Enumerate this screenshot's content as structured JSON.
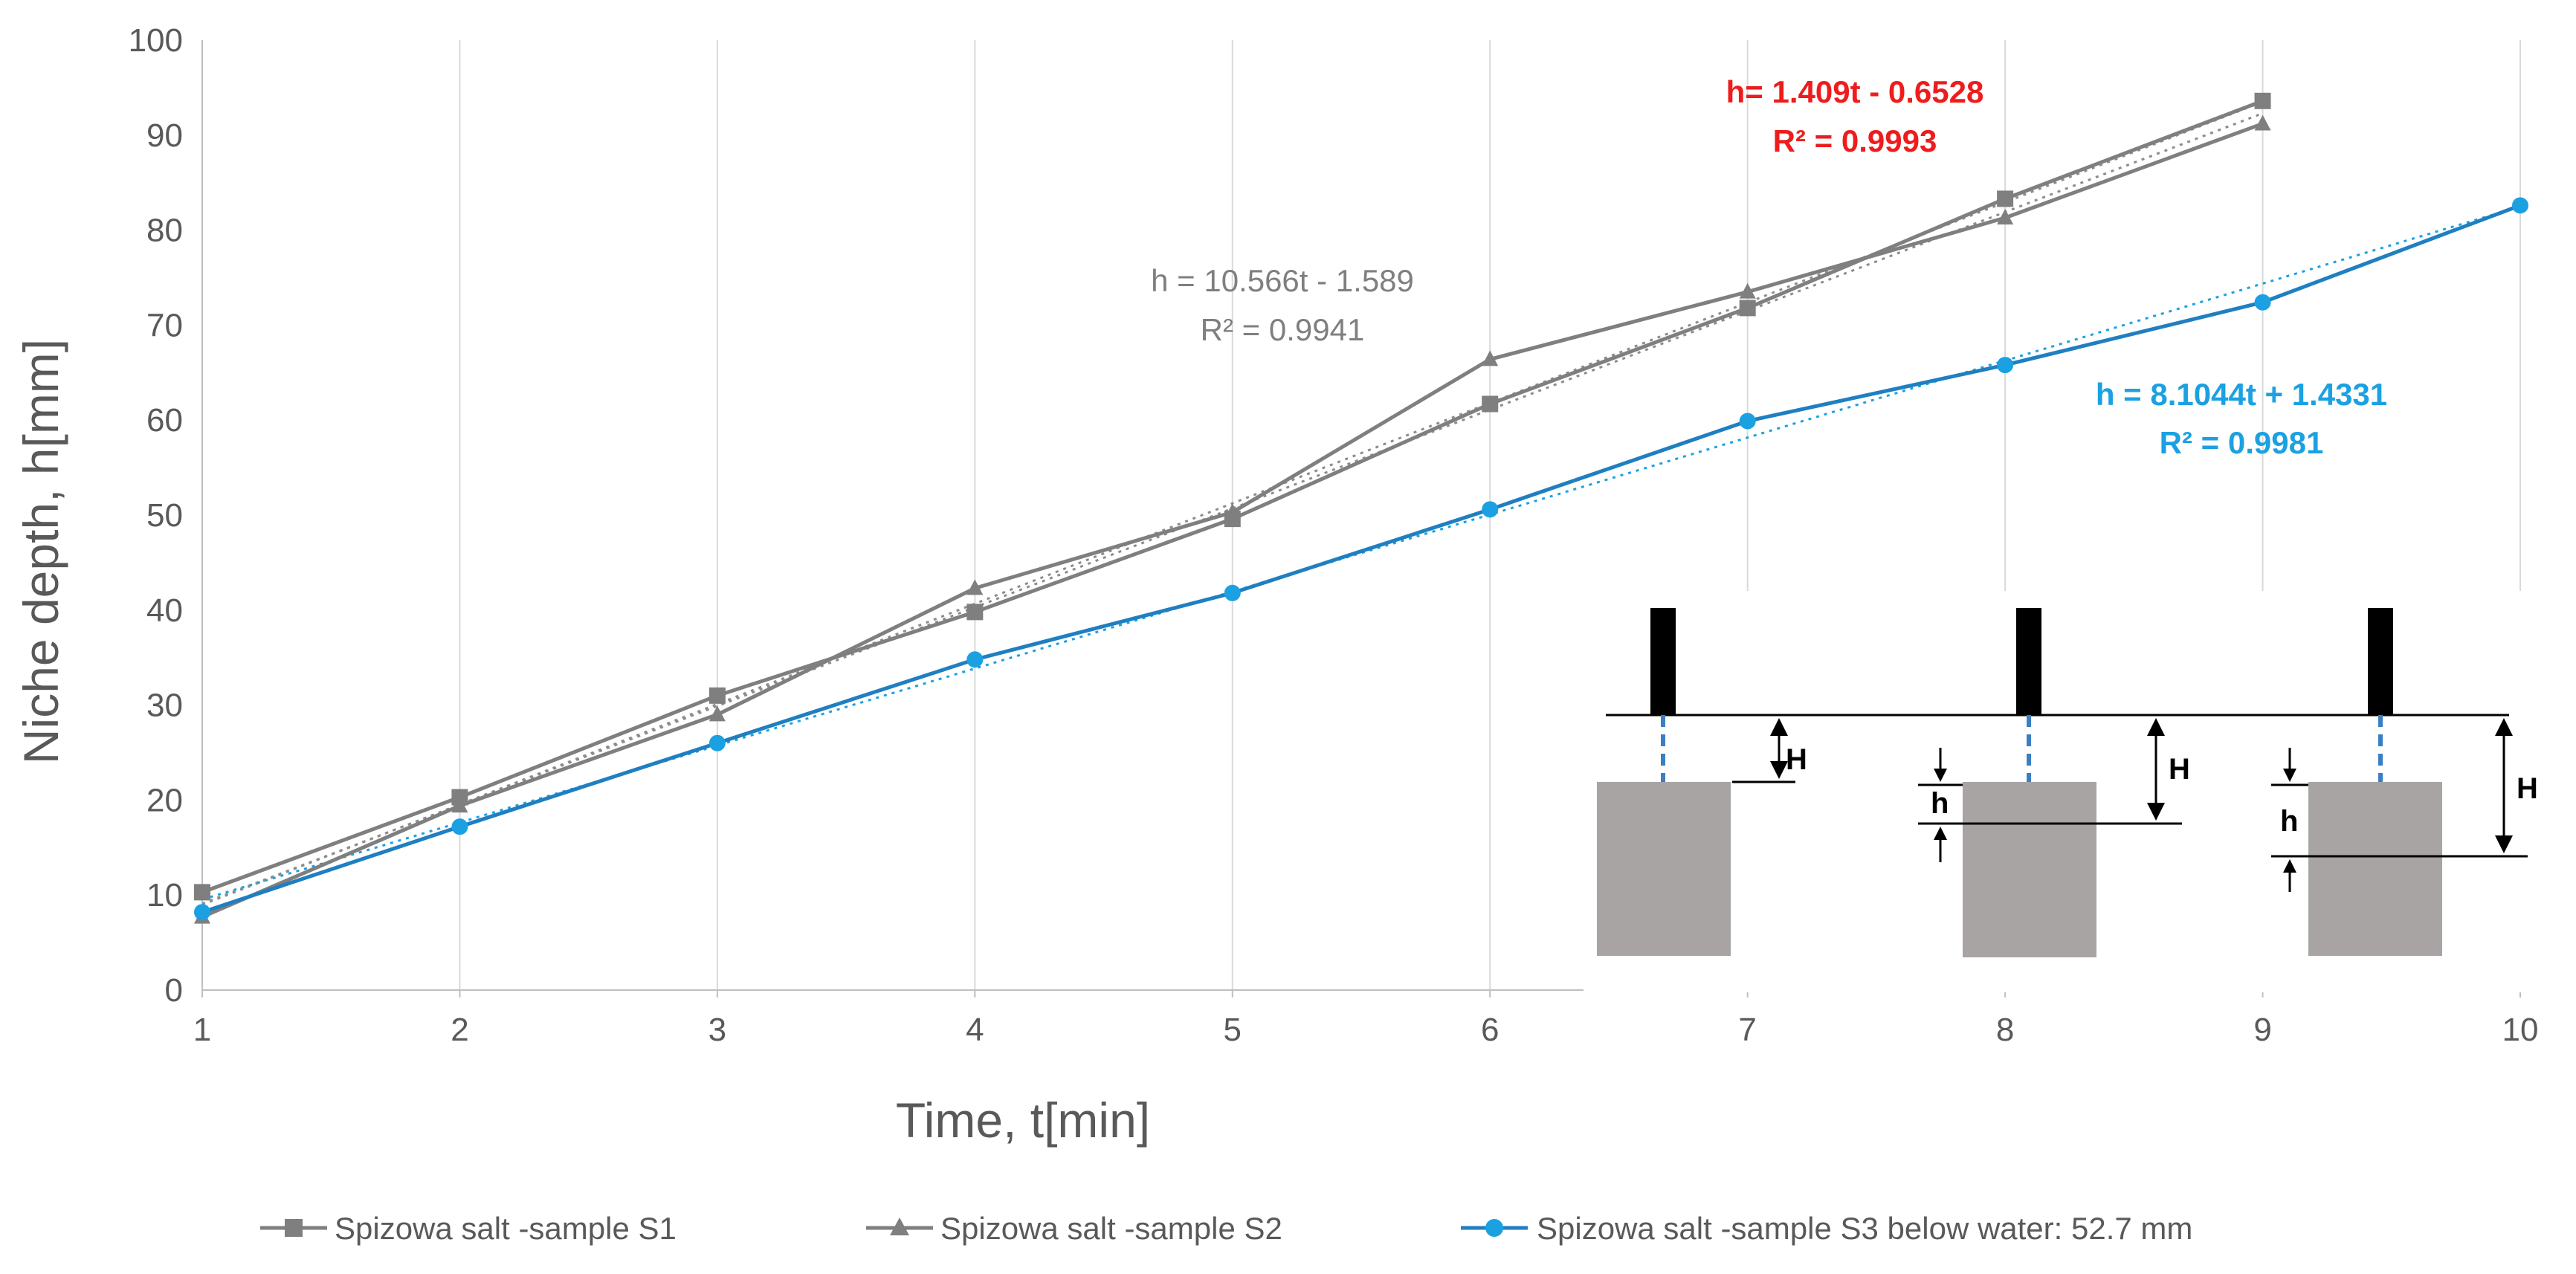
{
  "chart_data": {
    "type": "line",
    "title": "",
    "xlabel": "Time, t[min]",
    "ylabel": "Niche depth, h[mm]",
    "xlim": [
      1,
      10
    ],
    "ylim": [
      0,
      100
    ],
    "x_ticks": [
      "1",
      "2",
      "3",
      "4",
      "5",
      "6",
      "7",
      "8",
      "9",
      "10"
    ],
    "y_ticks": [
      "0",
      "10",
      "20",
      "30",
      "40",
      "50",
      "60",
      "70",
      "80",
      "90",
      "100"
    ],
    "grid": "vertical",
    "legend_position": "bottom",
    "series": [
      {
        "name": "Spizowa salt -sample  S1",
        "color": "#7f7f7f",
        "marker": "square",
        "x": [
          1,
          2,
          3,
          4,
          5,
          6,
          7,
          8,
          9
        ],
        "y": [
          10.3,
          20.3,
          31.0,
          39.8,
          49.6,
          61.7,
          71.8,
          83.3,
          93.6
        ],
        "trendline": {
          "slope": 10.566,
          "intercept": -1.589,
          "x_range": [
            1,
            9
          ]
        }
      },
      {
        "name": "Spizowa salt -sample  S2",
        "color": "#7f7f7f",
        "marker": "triangle",
        "x": [
          1,
          2,
          3,
          4,
          5,
          6,
          7,
          8,
          9
        ],
        "y": [
          7.7,
          19.4,
          29.0,
          42.3,
          50.3,
          66.4,
          73.5,
          81.3,
          91.2
        ],
        "trendline": {
          "slope": 10.4,
          "intercept": -1.3,
          "x_range": [
            1,
            9
          ]
        }
      },
      {
        "name": "Spizowa salt -sample  S3  below water: 52.7 mm",
        "color": "#1f7fc0",
        "marker": "circle",
        "x": [
          1,
          2,
          3,
          4,
          5,
          6,
          7,
          8,
          9,
          10
        ],
        "y": [
          8.2,
          17.2,
          26.0,
          34.8,
          41.8,
          50.6,
          59.9,
          65.8,
          72.4,
          82.6
        ],
        "trendline": {
          "slope": 8.1044,
          "intercept": 1.4331,
          "x_range": [
            1,
            10
          ]
        }
      }
    ],
    "annotations": [
      {
        "id": "eq-red",
        "line1": "h= 1.409t - 0.6528",
        "line2": "R² = 0.9993",
        "color": "#ee1c1c"
      },
      {
        "id": "eq-gray",
        "line1": "h = 10.566t - 1.589",
        "line2": "R² = 0.9941",
        "color": "#7f7f7f"
      },
      {
        "id": "eq-blue",
        "line1": "h = 8.1044t + 1.4331",
        "line2": "R² = 0.9981",
        "color": "#1ba1e2"
      }
    ],
    "inset_labels": {
      "H": "H",
      "h": "h"
    }
  }
}
